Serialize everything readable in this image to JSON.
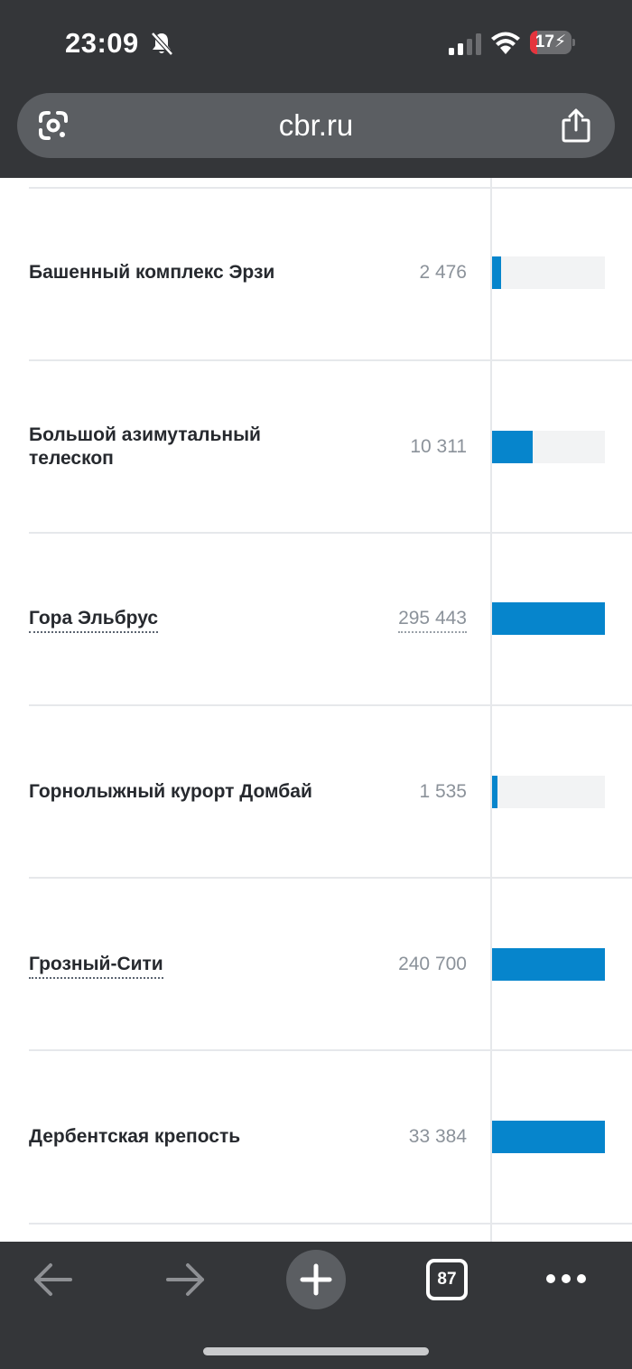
{
  "status_bar": {
    "time": "23:09",
    "battery_level": "17",
    "battery_color": "#e5343d",
    "icons": [
      "bell-off-icon",
      "cellular-signal-icon",
      "wifi-icon",
      "battery-charging-icon"
    ]
  },
  "browser": {
    "url": "cbr.ru",
    "left_icon": "google-lens-icon",
    "right_icon": "share-icon",
    "tab_count": "87",
    "toolbar_icons": [
      "back-arrow-icon",
      "forward-arrow-icon",
      "plus-icon",
      "tabs-icon",
      "more-dots-icon"
    ]
  },
  "table": {
    "bar_color": "#0685cc",
    "rows": [
      {
        "name": "Башенный комплекс Эрзи",
        "value": "2 476",
        "is_link": false,
        "bar_fraction": 0.08
      },
      {
        "name": "Большой азимутальный телескоп",
        "value": "10 311",
        "is_link": false,
        "bar_fraction": 0.36
      },
      {
        "name": "Гора Эльбрус",
        "value": "295 443",
        "is_link": true,
        "bar_fraction": 1.0
      },
      {
        "name": "Горнолыжный курорт Домбай",
        "value": "1 535",
        "is_link": false,
        "bar_fraction": 0.05
      },
      {
        "name": "Грозный-Сити",
        "value": "240 700",
        "is_link": true,
        "bar_fraction": 1.0
      },
      {
        "name": "Дербентская крепость",
        "value": "33 384",
        "is_link": false,
        "bar_fraction": 1.0
      }
    ]
  }
}
